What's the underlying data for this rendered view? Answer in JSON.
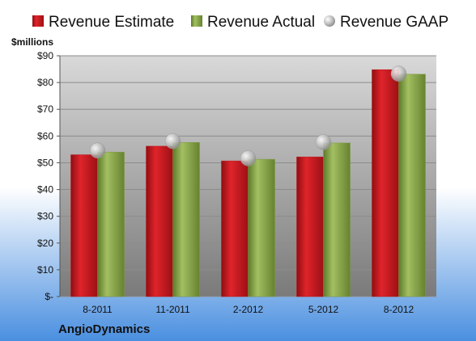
{
  "colors": {
    "estimate": "#c0141b",
    "actual": "#7d9a3f",
    "gaap": "#c8c8c8",
    "plot_top": "#d9d9d9",
    "plot_bottom": "#7a7a7a",
    "bg_top": "#ffffff",
    "bg_bottom": "#4a8fe0"
  },
  "company": "AngioDynamics",
  "chart_data": {
    "type": "bar",
    "categories": [
      "8-2011",
      "11-2011",
      "2-2012",
      "5-2012",
      "8-2012"
    ],
    "series": [
      {
        "name": "Revenue Estimate",
        "kind": "bar",
        "values": [
          53.0,
          56.2,
          50.7,
          52.2,
          84.8
        ]
      },
      {
        "name": "Revenue Actual",
        "kind": "bar",
        "values": [
          54.0,
          57.6,
          51.3,
          57.4,
          83.1
        ]
      },
      {
        "name": "Revenue GAAP",
        "kind": "marker",
        "values": [
          54.6,
          58.1,
          51.7,
          57.7,
          83.3
        ]
      }
    ],
    "unit_label": "$millions",
    "ylim": [
      0,
      90
    ],
    "y_ticks": [
      {
        "value": 0,
        "label": "$-"
      },
      {
        "value": 10,
        "label": "$10"
      },
      {
        "value": 20,
        "label": "$20"
      },
      {
        "value": 30,
        "label": "$30"
      },
      {
        "value": 40,
        "label": "$40"
      },
      {
        "value": 50,
        "label": "$50"
      },
      {
        "value": 60,
        "label": "$60"
      },
      {
        "value": 70,
        "label": "$70"
      },
      {
        "value": 80,
        "label": "$80"
      },
      {
        "value": 90,
        "label": "$90"
      }
    ],
    "grid": true,
    "legend_position": "top"
  }
}
